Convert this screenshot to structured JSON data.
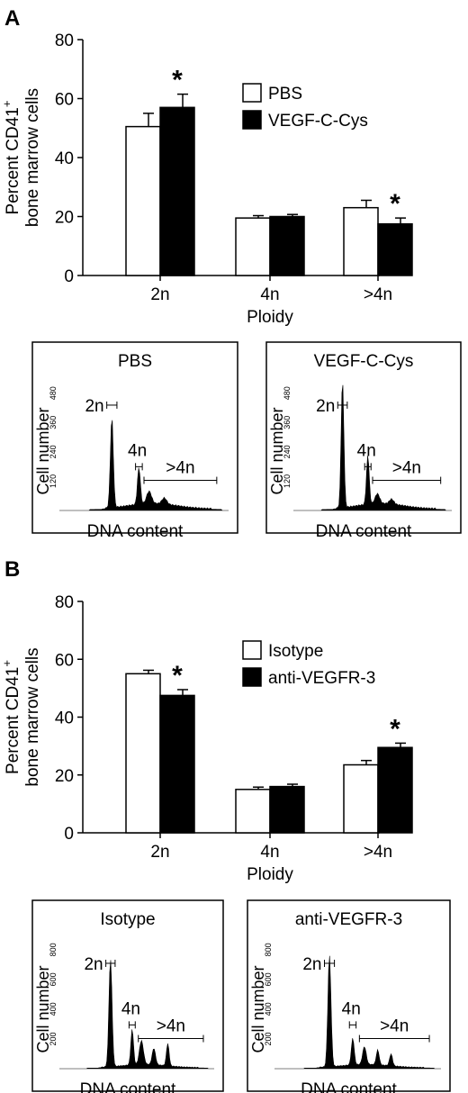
{
  "panels": [
    {
      "label": "A",
      "bar_chart": {
        "type": "bar",
        "ylabel_line1": "Percent CD41",
        "ylabel_sup": "+",
        "ylabel_line2": "bone marrow cells",
        "xlabel": "Ploidy",
        "ylim": [
          0,
          80
        ],
        "yticks": [
          0,
          20,
          40,
          60,
          80
        ],
        "categories": [
          "2n",
          "4n",
          ">4n"
        ],
        "series": [
          {
            "name": "PBS",
            "fill": "#ffffff",
            "values": [
              50.5,
              19.5,
              23
            ],
            "errors": [
              4.5,
              0.8,
              2.5
            ]
          },
          {
            "name": "VEGF-C-Cys",
            "fill": "#000000",
            "values": [
              57,
              20,
              17.5
            ],
            "errors": [
              4.5,
              0.7,
              2.0
            ]
          }
        ],
        "significance": [
          {
            "category": 0,
            "series": 1,
            "mark": "*"
          },
          {
            "category": 2,
            "series": 1,
            "mark": "*"
          }
        ],
        "legend_position": "top-right"
      },
      "histograms": [
        {
          "title": "PBS",
          "ylabel": "Cell number",
          "xlabel": "DNA content",
          "yticks": [
            "120",
            "240",
            "360",
            "480"
          ],
          "ymax": 560,
          "peaks": [
            {
              "pos": 0.31,
              "height": 370,
              "width": 0.012
            },
            {
              "pos": 0.47,
              "height": 150,
              "width": 0.012
            },
            {
              "pos": 0.53,
              "height": 50,
              "width": 0.02
            },
            {
              "pos": 0.62,
              "height": 25,
              "width": 0.02
            }
          ],
          "gates": [
            {
              "label": "2n",
              "start": 0.28,
              "end": 0.34
            },
            {
              "label": "4n",
              "start": 0.45,
              "end": 0.49
            },
            {
              "label": ">4n",
              "start": 0.5,
              "end": 0.93
            }
          ]
        },
        {
          "title": "VEGF-C-Cys",
          "ylabel": "Cell number",
          "xlabel": "DNA content",
          "yticks": [
            "120",
            "240",
            "360",
            "480"
          ],
          "ymax": 560,
          "peaks": [
            {
              "pos": 0.31,
              "height": 520,
              "width": 0.012
            },
            {
              "pos": 0.47,
              "height": 200,
              "width": 0.012
            },
            {
              "pos": 0.53,
              "height": 40,
              "width": 0.02
            },
            {
              "pos": 0.62,
              "height": 20,
              "width": 0.02
            }
          ],
          "gates": [
            {
              "label": "2n",
              "start": 0.28,
              "end": 0.34
            },
            {
              "label": "4n",
              "start": 0.45,
              "end": 0.49
            },
            {
              "label": ">4n",
              "start": 0.5,
              "end": 0.93
            }
          ]
        }
      ]
    },
    {
      "label": "B",
      "bar_chart": {
        "type": "bar",
        "ylabel_line1": "Percent CD41",
        "ylabel_sup": "+",
        "ylabel_line2": "bone marrow cells",
        "xlabel": "Ploidy",
        "ylim": [
          0,
          80
        ],
        "yticks": [
          0,
          20,
          40,
          60,
          80
        ],
        "categories": [
          "2n",
          "4n",
          ">4n"
        ],
        "series": [
          {
            "name": "Isotype",
            "fill": "#ffffff",
            "values": [
              55,
              15,
              23.5
            ],
            "errors": [
              1.2,
              0.8,
              1.5
            ]
          },
          {
            "name": "anti-VEGFR-3",
            "fill": "#000000",
            "values": [
              47.5,
              16,
              29.5
            ],
            "errors": [
              2.0,
              0.8,
              1.5
            ]
          }
        ],
        "significance": [
          {
            "category": 0,
            "series": 1,
            "mark": "*"
          },
          {
            "category": 2,
            "series": 1,
            "mark": "*"
          }
        ],
        "legend_position": "top-right"
      },
      "histograms": [
        {
          "title": "Isotype",
          "ylabel": "Cell number",
          "xlabel": "DNA content",
          "yticks": [
            "200",
            "400",
            "600",
            "800"
          ],
          "ymax": 920,
          "peaks": [
            {
              "pos": 0.33,
              "height": 720,
              "width": 0.014
            },
            {
              "pos": 0.47,
              "height": 240,
              "width": 0.012
            },
            {
              "pos": 0.53,
              "height": 160,
              "width": 0.018
            },
            {
              "pos": 0.61,
              "height": 110,
              "width": 0.015
            },
            {
              "pos": 0.7,
              "height": 150,
              "width": 0.012
            }
          ],
          "gates": [
            {
              "label": "2n",
              "start": 0.3,
              "end": 0.36
            },
            {
              "label": "4n",
              "start": 0.45,
              "end": 0.49
            },
            {
              "label": ">4n",
              "start": 0.51,
              "end": 0.93
            }
          ]
        },
        {
          "title": "anti-VEGFR-3",
          "ylabel": "Cell number",
          "xlabel": "DNA content",
          "yticks": [
            "200",
            "400",
            "600",
            "800"
          ],
          "ymax": 920,
          "peaks": [
            {
              "pos": 0.33,
              "height": 750,
              "width": 0.013
            },
            {
              "pos": 0.47,
              "height": 180,
              "width": 0.012
            },
            {
              "pos": 0.54,
              "height": 120,
              "width": 0.015
            },
            {
              "pos": 0.62,
              "height": 100,
              "width": 0.012
            },
            {
              "pos": 0.7,
              "height": 80,
              "width": 0.012
            }
          ],
          "gates": [
            {
              "label": "2n",
              "start": 0.3,
              "end": 0.36
            },
            {
              "label": "4n",
              "start": 0.45,
              "end": 0.49
            },
            {
              "label": ">4n",
              "start": 0.51,
              "end": 0.93
            }
          ]
        }
      ]
    }
  ]
}
